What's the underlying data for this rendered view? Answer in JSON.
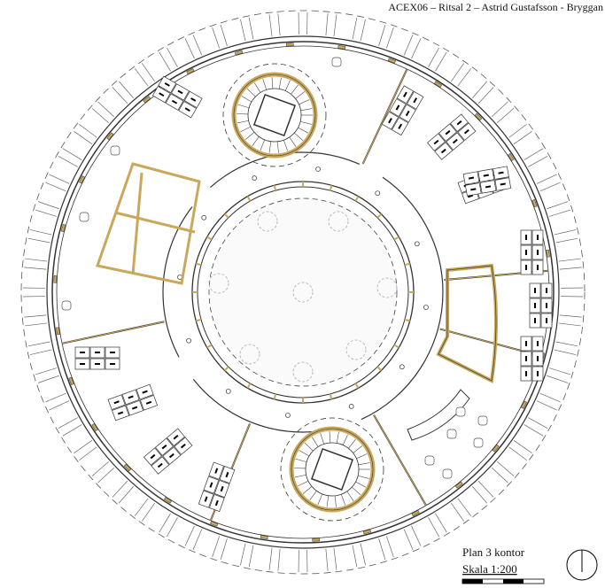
{
  "header": {
    "title": "ACEX06 – Ritsal 2 – Astrid Gustafsson - Bryggan"
  },
  "legend": {
    "plan": "Plan 3 kontor",
    "scale": "Skala 1:200"
  }
}
